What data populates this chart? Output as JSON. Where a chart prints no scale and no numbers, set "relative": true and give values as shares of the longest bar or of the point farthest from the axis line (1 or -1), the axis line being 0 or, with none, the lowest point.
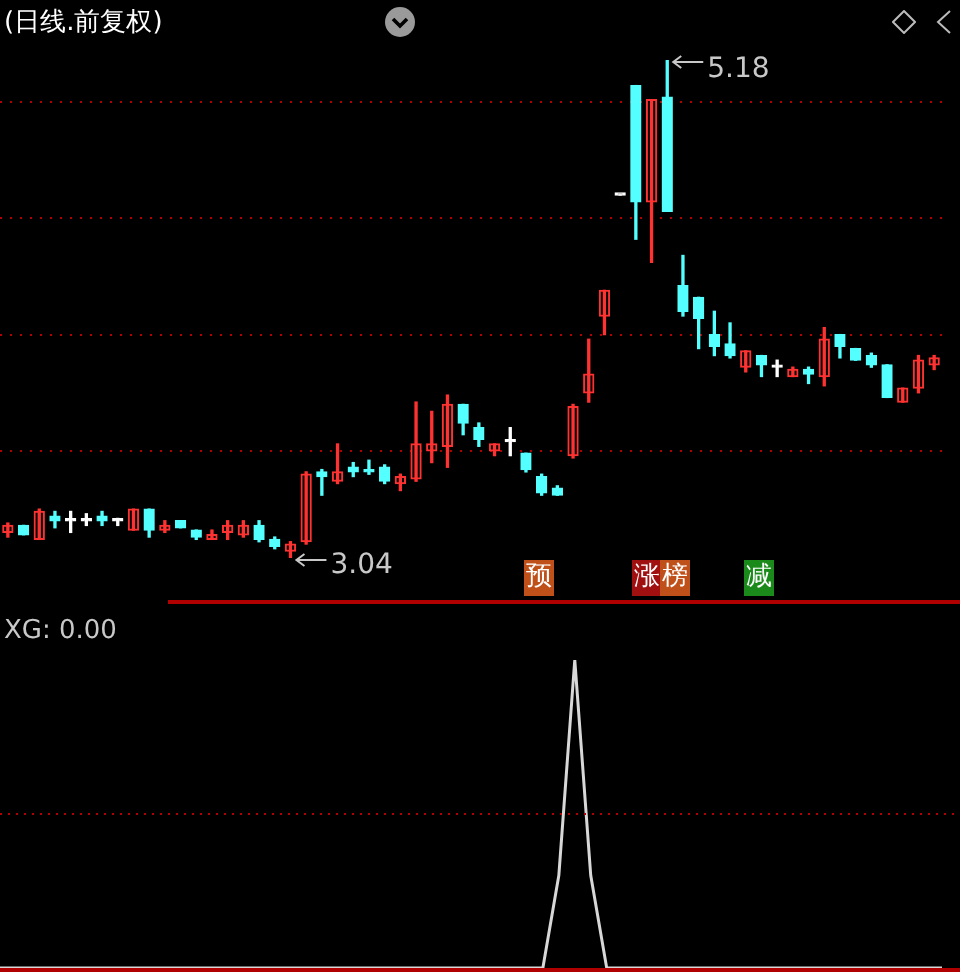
{
  "chart_data": [
    {
      "type": "candlestick",
      "title": "(日线.前复权)",
      "categories": [
        null,
        null,
        null,
        null,
        null,
        null,
        null,
        null,
        null,
        null,
        null,
        null,
        null,
        null,
        null,
        null,
        null,
        null,
        null,
        null,
        null,
        null,
        null,
        null,
        null,
        null,
        null,
        null,
        null,
        null,
        null,
        null,
        null,
        null,
        null,
        null,
        null,
        null,
        null,
        null,
        null,
        null,
        null,
        null,
        null,
        null,
        null,
        null,
        null,
        null,
        null,
        null,
        null,
        null,
        null,
        null,
        null,
        null,
        null,
        null
      ],
      "ohlc": [
        [
          3.15,
          3.19,
          3.13,
          3.18
        ],
        [
          3.18,
          3.18,
          3.14,
          3.14
        ],
        [
          3.12,
          3.25,
          3.12,
          3.24
        ],
        [
          3.22,
          3.24,
          3.17,
          3.2
        ],
        [
          3.2,
          3.24,
          3.15,
          3.2
        ],
        [
          3.2,
          3.23,
          3.18,
          3.2
        ],
        [
          3.22,
          3.24,
          3.18,
          3.2
        ],
        [
          3.2,
          3.21,
          3.18,
          3.2
        ],
        [
          3.16,
          3.25,
          3.16,
          3.25
        ],
        [
          3.25,
          3.25,
          3.13,
          3.16
        ],
        [
          3.16,
          3.2,
          3.15,
          3.18
        ],
        [
          3.2,
          3.2,
          3.17,
          3.17
        ],
        [
          3.16,
          3.16,
          3.12,
          3.13
        ],
        [
          3.12,
          3.16,
          3.12,
          3.14
        ],
        [
          3.15,
          3.2,
          3.12,
          3.18
        ],
        [
          3.14,
          3.2,
          3.13,
          3.18
        ],
        [
          3.18,
          3.2,
          3.11,
          3.12
        ],
        [
          3.12,
          3.13,
          3.08,
          3.09
        ],
        [
          3.07,
          3.11,
          3.04,
          3.1
        ],
        [
          3.11,
          3.41,
          3.1,
          3.4
        ],
        [
          3.41,
          3.42,
          3.31,
          3.39
        ],
        [
          3.37,
          3.53,
          3.36,
          3.41
        ],
        [
          3.43,
          3.45,
          3.39,
          3.41
        ],
        [
          3.42,
          3.46,
          3.4,
          3.41
        ],
        [
          3.43,
          3.44,
          3.36,
          3.37
        ],
        [
          3.36,
          3.4,
          3.33,
          3.39
        ],
        [
          3.38,
          3.71,
          3.37,
          3.53
        ],
        [
          3.5,
          3.67,
          3.45,
          3.53
        ],
        [
          3.52,
          3.74,
          3.43,
          3.7
        ],
        [
          3.7,
          3.7,
          3.57,
          3.62
        ],
        [
          3.6,
          3.62,
          3.52,
          3.55
        ],
        [
          3.5,
          3.53,
          3.48,
          3.53
        ],
        [
          3.54,
          3.6,
          3.48,
          3.54
        ],
        [
          3.49,
          3.49,
          3.41,
          3.42
        ],
        [
          3.39,
          3.4,
          3.31,
          3.32
        ],
        [
          3.34,
          3.35,
          3.31,
          3.31
        ],
        [
          3.48,
          3.7,
          3.47,
          3.69
        ],
        [
          3.75,
          3.98,
          3.71,
          3.83
        ],
        [
          4.08,
          4.19,
          4.0,
          4.19
        ],
        [
          4.6,
          4.6,
          4.6,
          4.6
        ],
        [
          5.07,
          5.07,
          4.41,
          4.57
        ],
        [
          4.57,
          5.01,
          4.31,
          5.01
        ],
        [
          5.02,
          5.18,
          4.53,
          4.53
        ],
        [
          4.21,
          4.34,
          4.08,
          4.1
        ],
        [
          4.16,
          4.16,
          3.94,
          4.07
        ],
        [
          4.0,
          4.1,
          3.91,
          3.95
        ],
        [
          3.96,
          4.05,
          3.9,
          3.91
        ],
        [
          3.86,
          3.93,
          3.84,
          3.93
        ],
        [
          3.91,
          3.91,
          3.82,
          3.87
        ],
        [
          3.86,
          3.89,
          3.82,
          3.86
        ],
        [
          3.82,
          3.86,
          3.82,
          3.85
        ],
        [
          3.85,
          3.86,
          3.79,
          3.83
        ],
        [
          3.82,
          4.03,
          3.78,
          3.98
        ],
        [
          4.0,
          4.0,
          3.9,
          3.95
        ],
        [
          3.94,
          3.94,
          3.89,
          3.89
        ],
        [
          3.91,
          3.92,
          3.86,
          3.87
        ],
        [
          3.87,
          3.87,
          3.73,
          3.73
        ],
        [
          3.71,
          3.77,
          3.71,
          3.77
        ],
        [
          3.77,
          3.91,
          3.75,
          3.89
        ],
        [
          3.87,
          3.91,
          3.85,
          3.9
        ]
      ],
      "colors": [
        "#ff3232",
        "#54ffff",
        "#ff3232",
        "#54ffff",
        "#ffffff",
        "#ffffff",
        "#54ffff",
        "#ffffff",
        "#ff3232",
        "#54ffff",
        "#ff3232",
        "#54ffff",
        "#54ffff",
        "#ff3232",
        "#ff3232",
        "#ff3232",
        "#54ffff",
        "#54ffff",
        "#ff3232",
        "#ff3232",
        "#54ffff",
        "#ff3232",
        "#54ffff",
        "#54ffff",
        "#54ffff",
        "#ff3232",
        "#ff3232",
        "#ff3232",
        "#ff3232",
        "#54ffff",
        "#54ffff",
        "#ff3232",
        "#ffffff",
        "#54ffff",
        "#54ffff",
        "#54ffff",
        "#ff3232",
        "#ff3232",
        "#ff3232",
        "#ffffff",
        "#54ffff",
        "#ff3232",
        "#54ffff",
        "#54ffff",
        "#54ffff",
        "#54ffff",
        "#54ffff",
        "#ff3232",
        "#54ffff",
        "#ffffff",
        "#ff3232",
        "#54ffff",
        "#ff3232",
        "#54ffff",
        "#54ffff",
        "#54ffff",
        "#54ffff",
        "#ff3232",
        "#ff3232",
        "#ff3232"
      ],
      "yticks": [
        {
          "value": 3.5,
          "label": null
        },
        {
          "value": 4.0,
          "label": null
        },
        {
          "value": 4.5,
          "label": null
        },
        {
          "value": 5.0,
          "label": null
        }
      ],
      "grid": "y",
      "tick_labels": false,
      "legend": false,
      "annotations": [
        "5.18",
        "3.04",
        "预",
        "涨",
        "榜",
        "减"
      ]
    },
    {
      "type": "line",
      "title": "XG: 0.00",
      "relative": true,
      "ref_lines": [
        {
          "axis": "y",
          "value": 0.5,
          "color": "#b00000",
          "line_style": "dotted"
        }
      ],
      "tick_labels": false,
      "legend": false,
      "marker": "none",
      "categories": [
        null,
        null,
        null,
        null,
        null,
        null,
        null,
        null,
        null,
        null,
        null,
        null,
        null,
        null,
        null,
        null,
        null,
        null,
        null,
        null,
        null,
        null,
        null,
        null,
        null,
        null,
        null,
        null,
        null,
        null,
        null,
        null,
        null,
        null,
        null,
        null,
        null,
        null,
        null,
        null,
        null,
        null,
        null,
        null,
        null,
        null,
        null,
        null,
        null,
        null,
        null,
        null,
        null,
        null,
        null,
        null,
        null,
        null,
        null,
        null
      ],
      "series": [
        {
          "color": "#d8d8d8",
          "values": [
            0,
            0,
            0,
            0,
            0,
            0,
            0,
            0,
            0,
            0,
            0,
            0,
            0,
            0,
            0,
            0,
            0,
            0,
            0,
            0,
            0,
            0,
            0,
            0,
            0,
            0,
            0,
            0,
            0,
            0,
            0,
            0,
            0,
            0,
            0,
            0.3,
            1,
            0.3,
            0,
            0,
            0,
            0,
            0,
            0,
            0,
            0,
            0,
            0,
            0,
            0,
            0,
            0,
            0,
            0,
            0,
            0,
            0,
            0,
            0,
            0
          ]
        }
      ]
    }
  ]
}
